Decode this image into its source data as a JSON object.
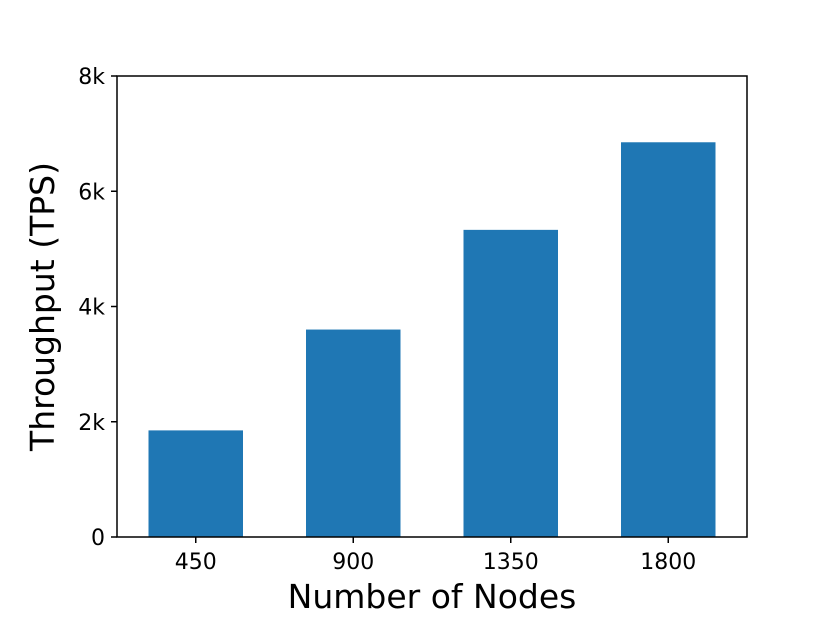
{
  "chart_data": {
    "type": "bar",
    "categories": [
      "450",
      "900",
      "1350",
      "1800"
    ],
    "values": [
      1850,
      3600,
      5330,
      6850
    ],
    "xlabel": "Number of Nodes",
    "ylabel": "Throughput (TPS)",
    "ylim": [
      0,
      8000
    ],
    "yticks": [
      {
        "value": 0,
        "label": "0"
      },
      {
        "value": 2000,
        "label": "2k"
      },
      {
        "value": 4000,
        "label": "4k"
      },
      {
        "value": 6000,
        "label": "6k"
      },
      {
        "value": 8000,
        "label": "8k"
      }
    ],
    "bar_color": "#1f77b4",
    "grid": false,
    "legend": "none"
  }
}
